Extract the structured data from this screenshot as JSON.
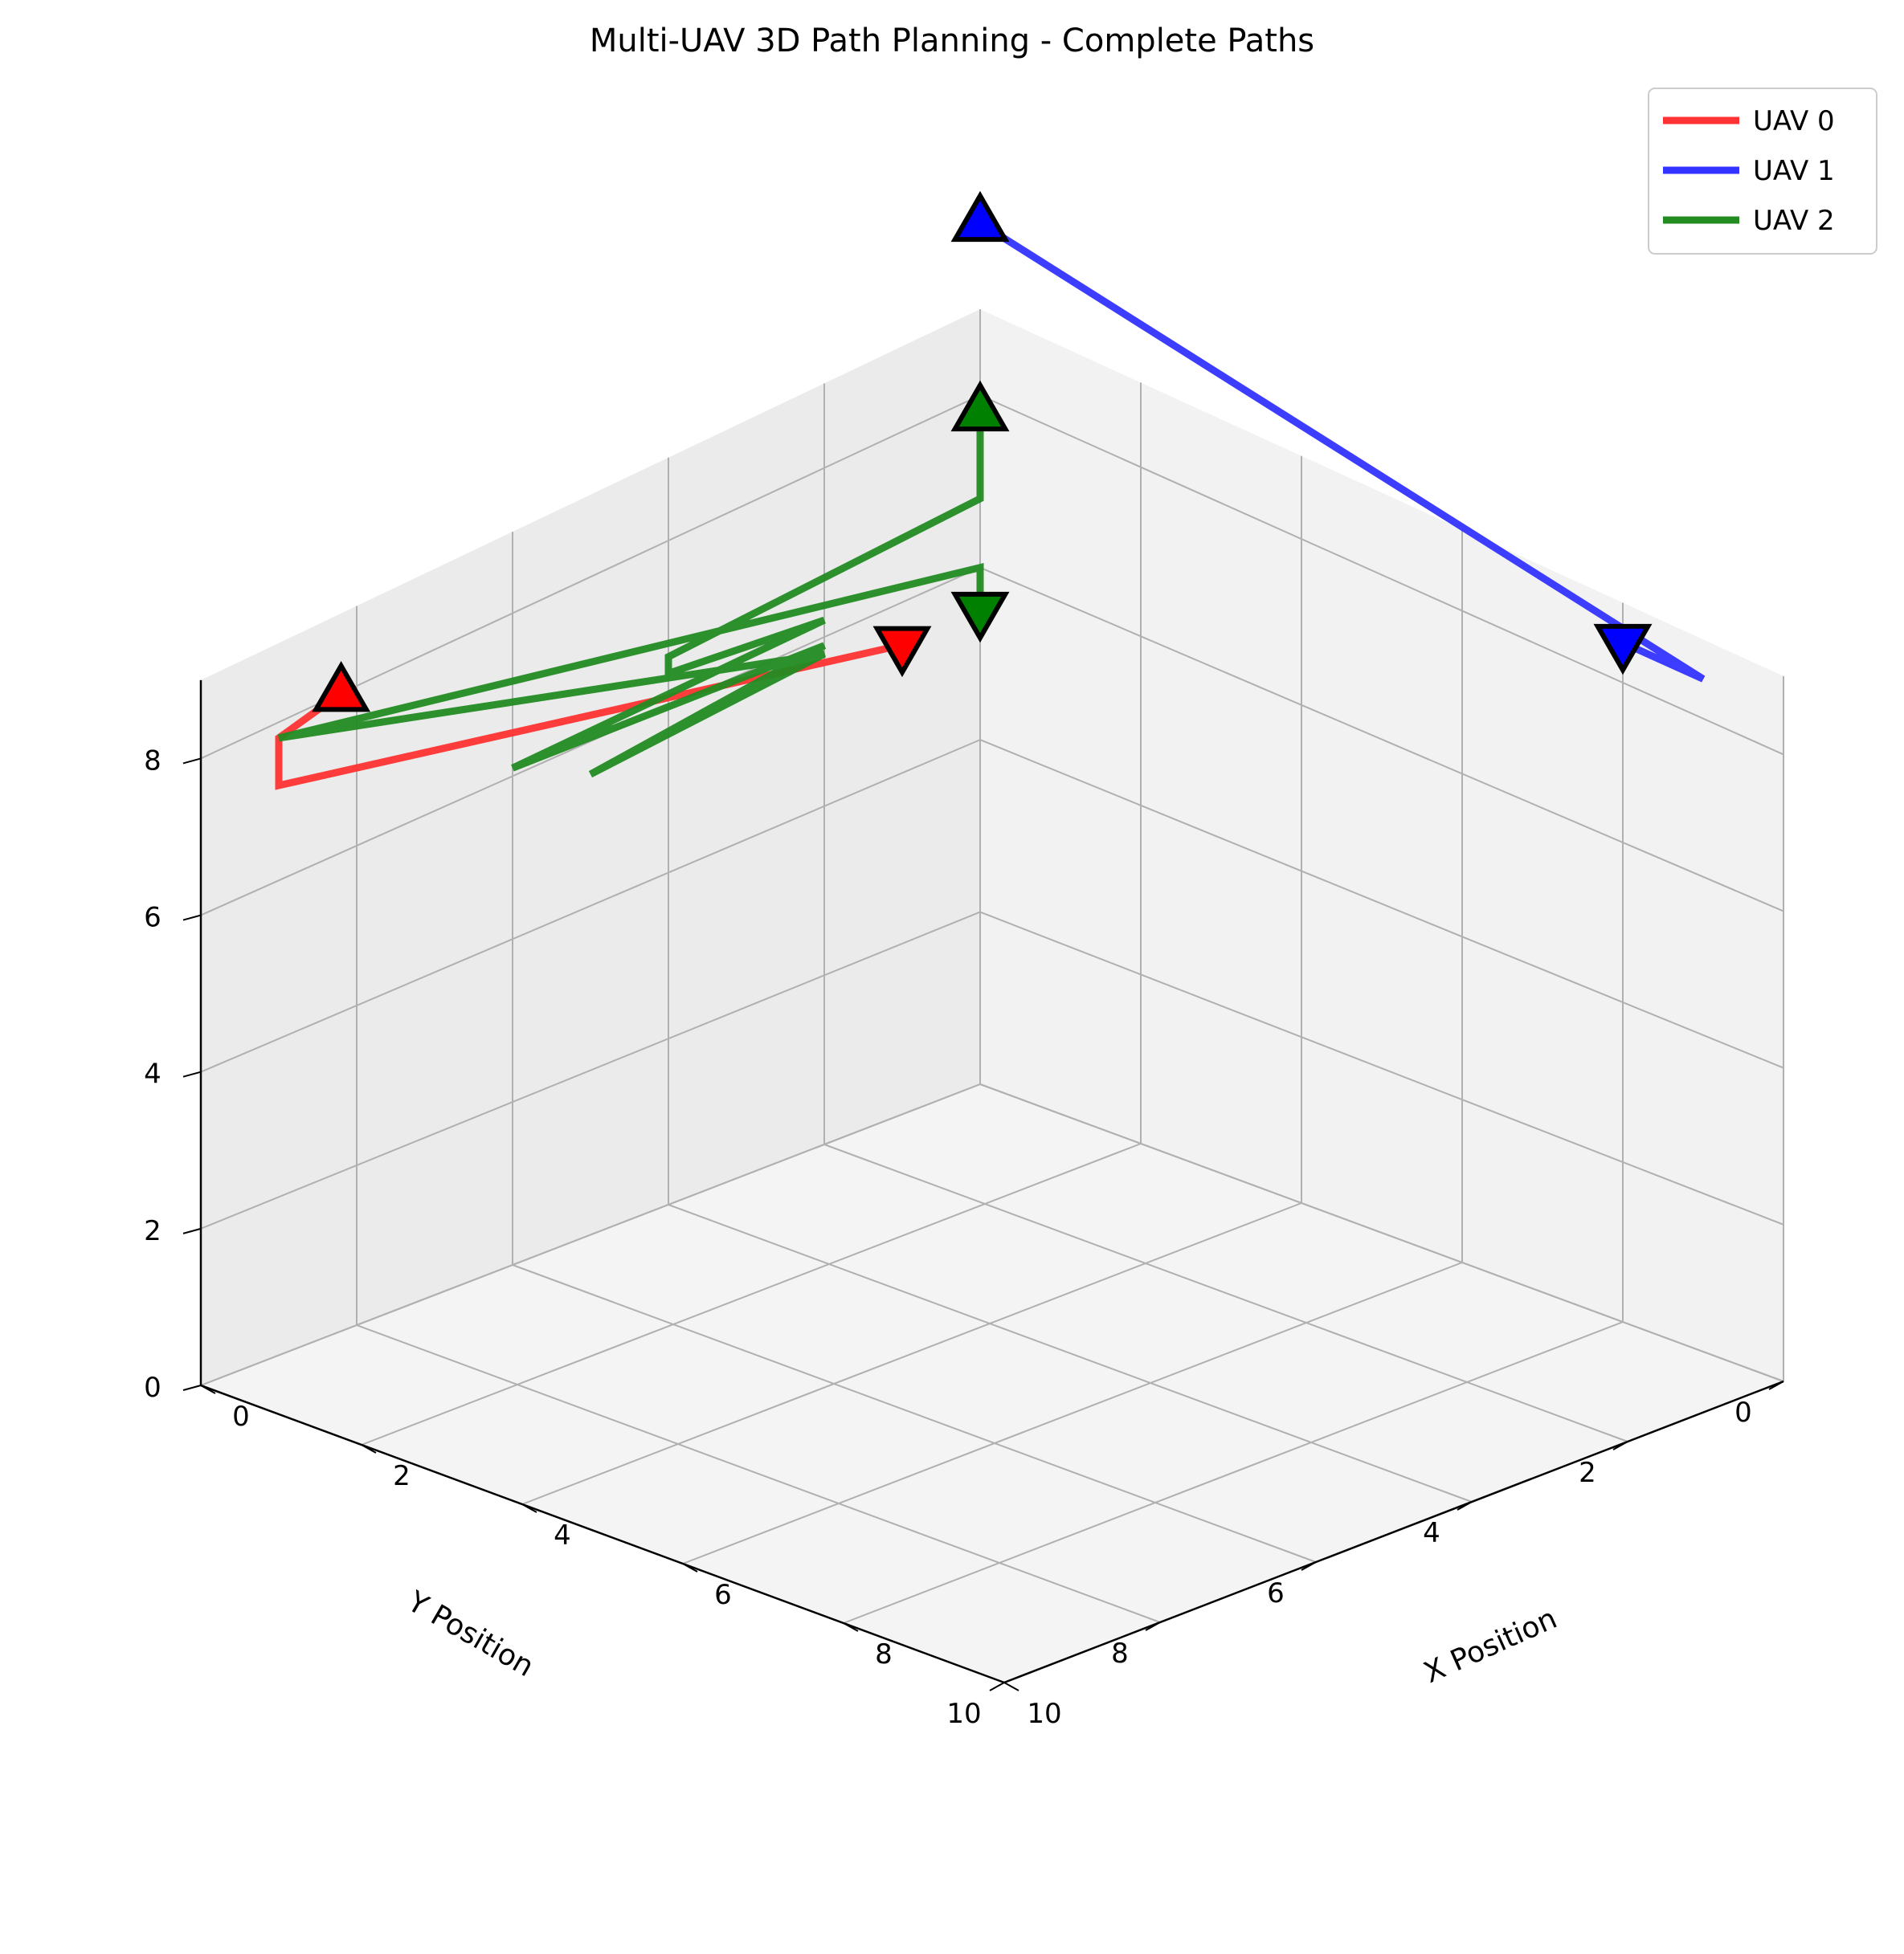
{
  "chart_data": {
    "type": "line",
    "projection": "3d",
    "title": "Multi-UAV 3D Path Planning - Complete Paths",
    "xlabel": "X Position",
    "ylabel": "Y Position",
    "zlabel": "",
    "xlim": [
      0,
      10
    ],
    "ylim": [
      0,
      10
    ],
    "zlim": [
      0,
      9
    ],
    "x_ticks": [
      "0",
      "2",
      "4",
      "6",
      "8",
      "10"
    ],
    "y_ticks": [
      "0",
      "2",
      "4",
      "6",
      "8",
      "10"
    ],
    "z_ticks": [
      "0",
      "2",
      "4",
      "6",
      "8"
    ],
    "grid": true,
    "legend_position": "top-right",
    "series": [
      {
        "name": "UAV 0",
        "color": "#ff3333",
        "points": [
          [
            0,
            8.2,
            8.0
          ],
          [
            0,
            9.0,
            7.8
          ],
          [
            0,
            9.0,
            7.2
          ],
          [
            0,
            1.0,
            5.5
          ]
        ],
        "start": [
          0,
          8.2,
          8.0
        ],
        "goal": [
          0,
          1.0,
          5.5
        ]
      },
      {
        "name": "UAV 1",
        "color": "#3333ff",
        "points": [
          [
            0,
            0.0,
            10.0
          ],
          [
            0,
            0.0,
            10.0
          ],
          [
            0,
            0.0,
            10.0
          ],
          [
            9.0,
            0.0,
            8.5
          ],
          [
            8.0,
            0.0,
            8.5
          ],
          [
            8.0,
            0.0,
            8.5
          ]
        ],
        "start": [
          0,
          0.0,
          10.0
        ],
        "goal": [
          8.0,
          0.0,
          8.5
        ]
      },
      {
        "name": "UAV 2",
        "color": "#228b22",
        "points": [
          [
            0,
            0.0,
            7.8
          ],
          [
            0,
            0.0,
            6.8
          ],
          [
            0,
            4.0,
            6.6
          ],
          [
            0,
            4.0,
            6.4
          ],
          [
            0,
            2.0,
            6.2
          ],
          [
            0,
            6.0,
            6.1
          ],
          [
            0,
            2.0,
            5.9
          ],
          [
            0,
            5.0,
            5.6
          ],
          [
            0,
            2.0,
            5.8
          ],
          [
            0,
            9.0,
            7.8
          ],
          [
            0,
            0.0,
            6.0
          ],
          [
            0,
            0.0,
            5.5
          ]
        ],
        "start": [
          0,
          0.0,
          7.8
        ],
        "goal": [
          0,
          0.0,
          5.5
        ]
      }
    ]
  }
}
